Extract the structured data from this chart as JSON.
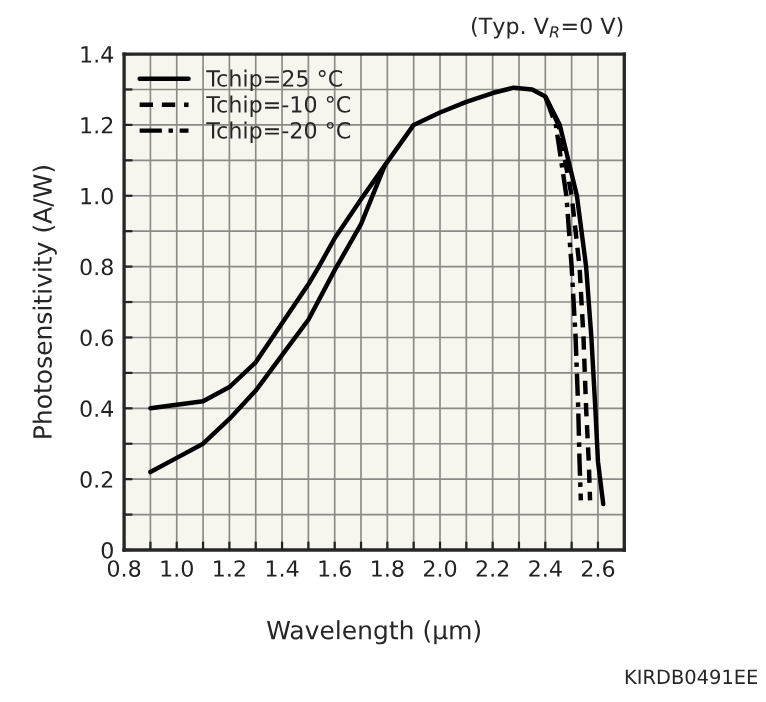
{
  "chart_data": {
    "type": "line",
    "xlabel": "Wavelength (µm)",
    "ylabel": "Photosensitivity (A/W)",
    "annotations": [
      "(Typ. V$_{R}$=0 V)",
      "KIRDB0491EE"
    ],
    "series": [
      {
        "name": "Tchip=25 °C",
        "color": "#000000",
        "line_style": "solid",
        "x": [
          0.9,
          1.0,
          1.1,
          1.2,
          1.3,
          1.4,
          1.5,
          1.54,
          1.6,
          1.7,
          1.79,
          1.9,
          2.0,
          2.1,
          2.2,
          2.28,
          2.35,
          2.4,
          2.455,
          2.52,
          2.555,
          2.575,
          2.59,
          2.6,
          2.62
        ],
        "values": [
          0.4,
          0.41,
          0.42,
          0.46,
          0.53,
          0.64,
          0.75,
          0.8,
          0.88,
          0.99,
          1.085,
          1.2,
          1.235,
          1.265,
          1.29,
          1.305,
          1.3,
          1.28,
          1.2,
          1.0,
          0.8,
          0.6,
          0.4,
          0.25,
          0.13
        ]
      },
      {
        "color": "#000000",
        "line_style": "solid",
        "x": [
          0.9,
          1.0,
          1.1,
          1.2,
          1.3,
          1.4,
          1.5,
          1.6,
          1.7,
          1.79
        ],
        "values": [
          0.22,
          0.26,
          0.3,
          0.37,
          0.45,
          0.55,
          0.65,
          0.79,
          0.92,
          1.085
        ]
      },
      {
        "name": "Tchip=-10 °C",
        "color": "#000000",
        "line_style": "dashed",
        "x": [
          2.4,
          2.45,
          2.5,
          2.53,
          2.545,
          2.555,
          2.565,
          2.57
        ],
        "values": [
          1.28,
          1.2,
          1.0,
          0.8,
          0.6,
          0.4,
          0.25,
          0.14
        ]
      },
      {
        "name": "Tchip=-20 °C",
        "color": "#000000",
        "line_style": "dashdot",
        "x": [
          2.4,
          2.44,
          2.48,
          2.5,
          2.515,
          2.525,
          2.53,
          2.535
        ],
        "values": [
          1.28,
          1.2,
          1.0,
          0.8,
          0.6,
          0.4,
          0.25,
          0.14
        ]
      }
    ],
    "xlim": [
      0.8,
      2.7
    ],
    "ylim": [
      0,
      1.4
    ],
    "xticks": [
      {
        "value": 0.8,
        "label": "0.8"
      },
      {
        "value": 0.9,
        "label": null
      },
      {
        "value": 1.0,
        "label": "1.0"
      },
      {
        "value": 1.1,
        "label": null
      },
      {
        "value": 1.2,
        "label": "1.2"
      },
      {
        "value": 1.3,
        "label": null
      },
      {
        "value": 1.4,
        "label": "1.4"
      },
      {
        "value": 1.5,
        "label": null
      },
      {
        "value": 1.6,
        "label": "1.6"
      },
      {
        "value": 1.7,
        "label": null
      },
      {
        "value": 1.8,
        "label": "1.8"
      },
      {
        "value": 1.9,
        "label": null
      },
      {
        "value": 2.0,
        "label": "2.0"
      },
      {
        "value": 2.1,
        "label": null
      },
      {
        "value": 2.2,
        "label": "2.2"
      },
      {
        "value": 2.3,
        "label": null
      },
      {
        "value": 2.4,
        "label": "2.4"
      },
      {
        "value": 2.5,
        "label": null
      },
      {
        "value": 2.6,
        "label": "2.6"
      }
    ],
    "yticks": [
      0,
      {
        "value": 0.1,
        "label": null
      },
      {
        "value": 0.2,
        "label": "0.2"
      },
      {
        "value": 0.3,
        "label": null
      },
      {
        "value": 0.4,
        "label": "0.4"
      },
      {
        "value": 0.5,
        "label": null
      },
      {
        "value": 0.6,
        "label": "0.6"
      },
      {
        "value": 0.7,
        "label": null
      },
      {
        "value": 0.8,
        "label": "0.8"
      },
      {
        "value": 0.9,
        "label": null
      },
      {
        "value": 1.0,
        "label": "1.0"
      },
      {
        "value": 1.1,
        "label": null
      },
      {
        "value": 1.2,
        "label": "1.2"
      },
      {
        "value": 1.3,
        "label": null
      },
      {
        "value": 1.4,
        "label": "1.4"
      }
    ],
    "grid": true,
    "legend": "top left",
    "marker": "none"
  }
}
